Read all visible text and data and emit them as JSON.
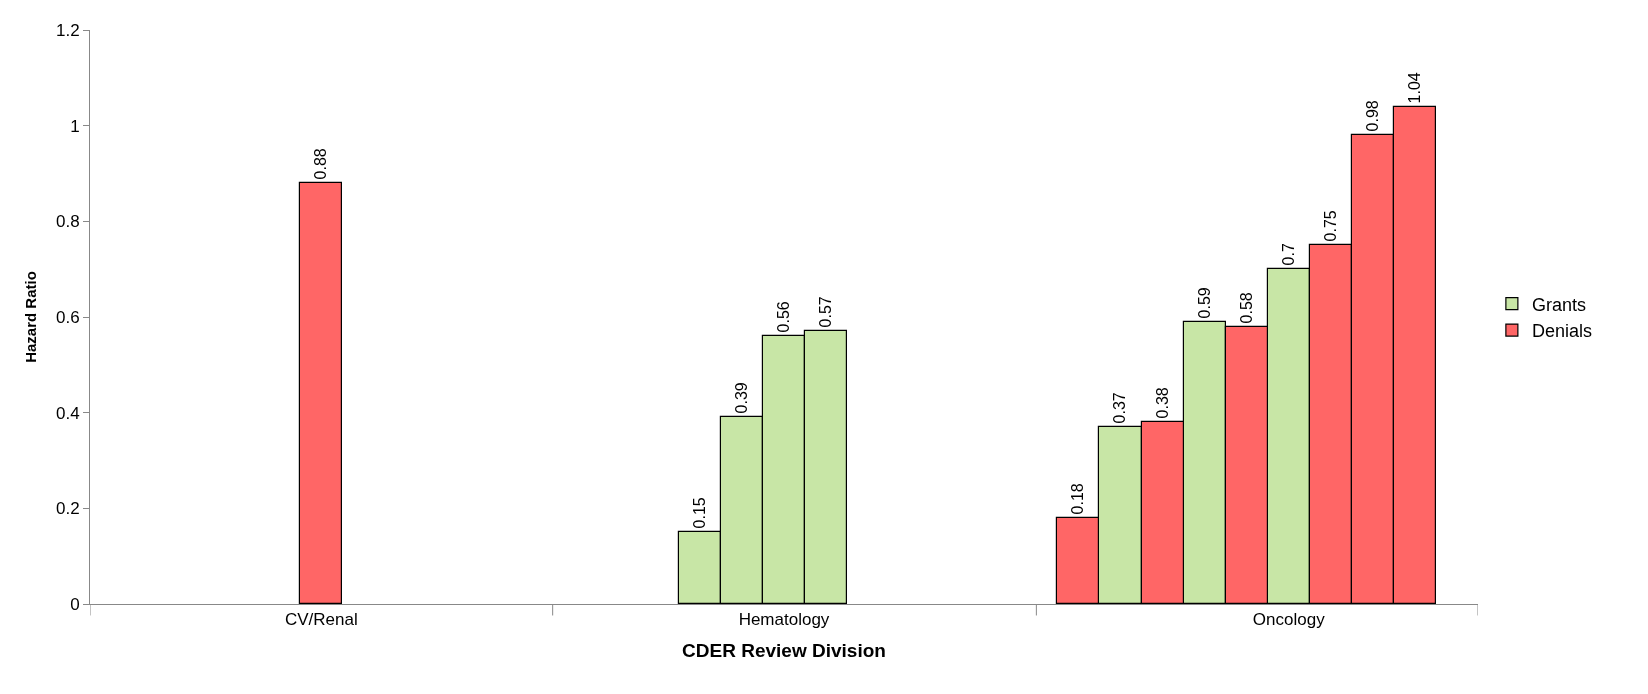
{
  "chart_data": {
    "type": "bar",
    "xlabel": "CDER Review Division",
    "ylabel": "Hazard Ratio",
    "categories": [
      null,
      null,
      null,
      null,
      null,
      "CV/Renal",
      null,
      null,
      null,
      null,
      null,
      null,
      null,
      null,
      null,
      null,
      "Hematology",
      null,
      null,
      null,
      null,
      null,
      null,
      null,
      null,
      null,
      null,
      null,
      "Oncology",
      null,
      null,
      null,
      null
    ],
    "ylim": [
      0,
      1.2
    ],
    "yticks": [
      0,
      0.2,
      0.4,
      0.6,
      0.8,
      1,
      1.2
    ],
    "series": [
      {
        "name": "Grants",
        "color": "#c8e6a6",
        "values": [
          null,
          null,
          null,
          null,
          null,
          null,
          null,
          null,
          null,
          null,
          null,
          null,
          null,
          null,
          0.15,
          0.39,
          0.56,
          0.57,
          null,
          null,
          null,
          null,
          null,
          null,
          0.37,
          null,
          0.59,
          null,
          0.7,
          null,
          null,
          null,
          null
        ]
      },
      {
        "name": "Denials",
        "color": "#ff6666",
        "values": [
          null,
          null,
          null,
          null,
          null,
          0.88,
          null,
          null,
          null,
          null,
          null,
          null,
          null,
          null,
          null,
          null,
          null,
          null,
          null,
          null,
          null,
          null,
          null,
          0.18,
          null,
          0.38,
          null,
          0.58,
          null,
          0.75,
          0.98,
          1.04,
          null
        ]
      }
    ],
    "data_labels": true,
    "legend": "right"
  }
}
